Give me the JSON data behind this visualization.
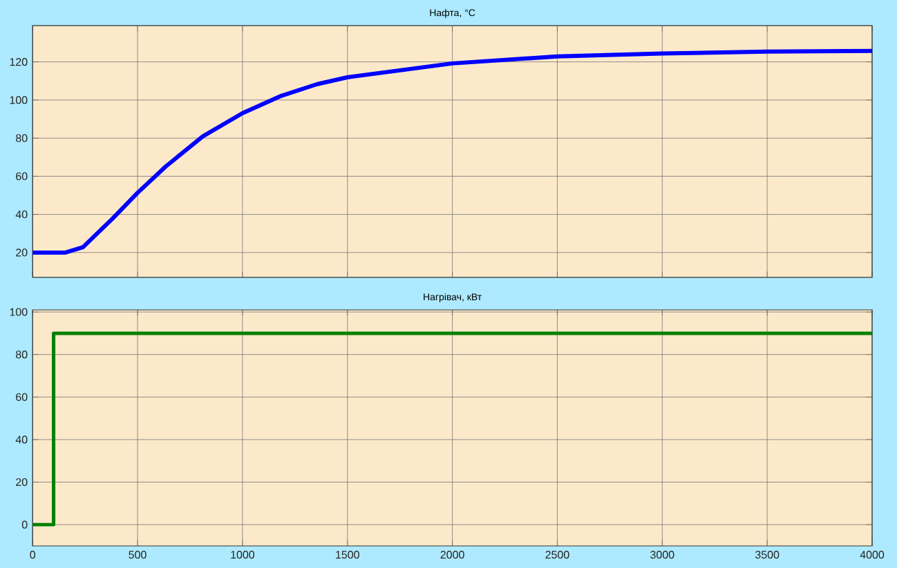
{
  "chart_data": [
    {
      "type": "line",
      "title": "Нафта, °C",
      "x": [
        0,
        157,
        240,
        382,
        500,
        635,
        812,
        1000,
        1185,
        1355,
        1500,
        2000,
        2500,
        3000,
        3500,
        4000
      ],
      "series": [
        {
          "color": "#0000ff",
          "values": [
            20,
            20,
            22.8,
            37.9,
            51.3,
            65.2,
            81,
            93.1,
            102.2,
            108.3,
            111.9,
            119.2,
            122.9,
            124.4,
            125.4,
            125.8
          ]
        }
      ],
      "xlim": [
        0,
        4000
      ],
      "ylim": [
        7,
        139
      ],
      "xticks": [
        0,
        500,
        1000,
        1500,
        2000,
        2500,
        3000,
        3500,
        4000
      ],
      "yticks": [
        20,
        40,
        60,
        80,
        100,
        120
      ],
      "grid": true,
      "tick_labels": "y"
    },
    {
      "type": "step",
      "title": "Нагрівач, кВт",
      "x": [
        0,
        100,
        4000
      ],
      "series": [
        {
          "color": "#008000",
          "values": [
            0,
            90,
            90
          ]
        }
      ],
      "xlim": [
        0,
        4000
      ],
      "ylim": [
        -10,
        101
      ],
      "xticks": [
        0,
        500,
        1000,
        1500,
        2000,
        2500,
        3000,
        3500,
        4000
      ],
      "yticks": [
        0,
        20,
        40,
        60,
        80,
        100
      ],
      "grid": true
    }
  ]
}
